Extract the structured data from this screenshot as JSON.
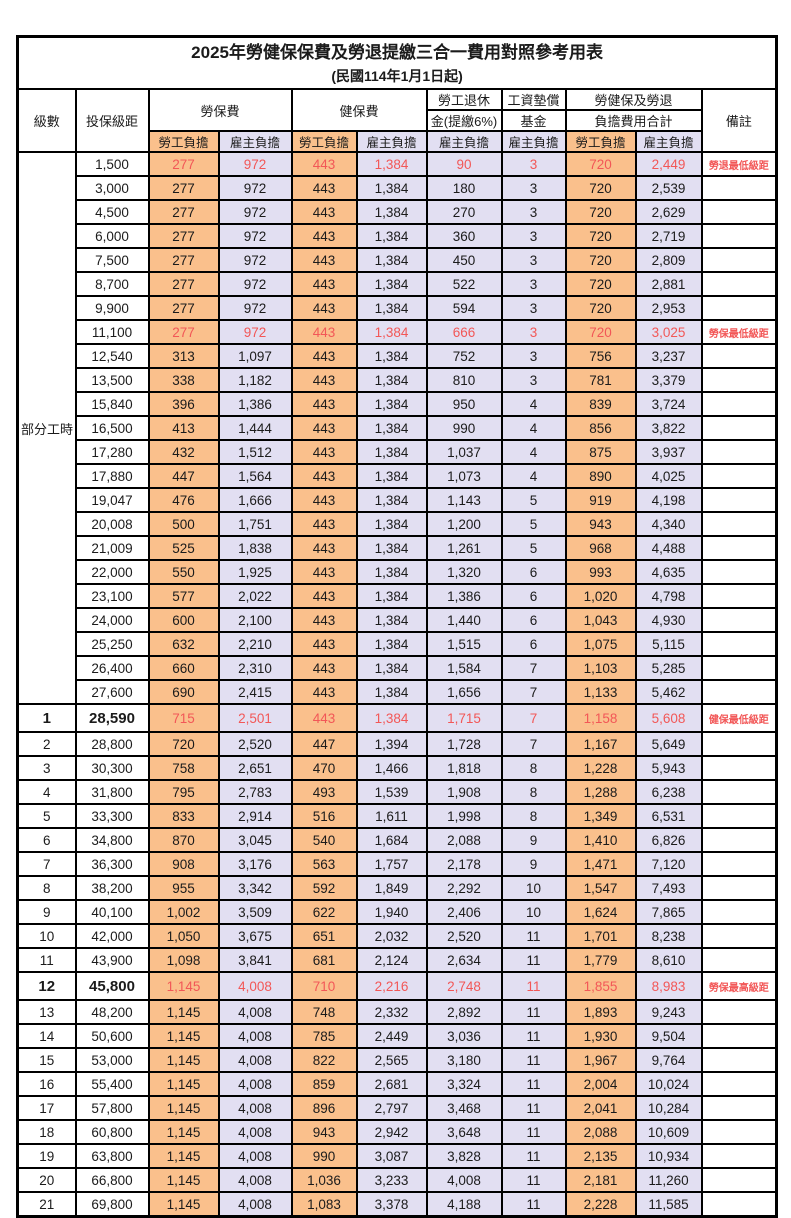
{
  "title": "2025年勞健保保費及勞退提繳三合一費用對照參考用表",
  "subtitle": "(民國114年1月1日起)",
  "header": {
    "level": "級數",
    "bracket": "投保級距",
    "labor_group": "勞保費",
    "health_group": "健保費",
    "pension_line1": "勞工退休",
    "pension_line2": "金(提繳6%)",
    "wage_fund_line1": "工資墊償",
    "wage_fund_line2": "基金",
    "total_line1": "勞健保及勞退",
    "total_line2": "負擔費用合計",
    "remark": "備註",
    "employee_share": "勞工負擔",
    "employer_share": "雇主負擔"
  },
  "part_time_label": "部分工時",
  "colors": {
    "employee_fill": "#fac08c",
    "employer_fill": "#e2dff2",
    "highlight_red": "#f25757",
    "border": "#000000",
    "background": "#ffffff"
  },
  "rows": [
    {
      "level": "",
      "bracket": "1,500",
      "values": [
        "277",
        "972",
        "443",
        "1,384",
        "90",
        "3",
        "720",
        "2,449"
      ],
      "remark": "勞退最低級距",
      "red": true,
      "bold": false
    },
    {
      "level": "",
      "bracket": "3,000",
      "values": [
        "277",
        "972",
        "443",
        "1,384",
        "180",
        "3",
        "720",
        "2,539"
      ],
      "remark": "",
      "red": false,
      "bold": false
    },
    {
      "level": "",
      "bracket": "4,500",
      "values": [
        "277",
        "972",
        "443",
        "1,384",
        "270",
        "3",
        "720",
        "2,629"
      ],
      "remark": "",
      "red": false,
      "bold": false
    },
    {
      "level": "",
      "bracket": "6,000",
      "values": [
        "277",
        "972",
        "443",
        "1,384",
        "360",
        "3",
        "720",
        "2,719"
      ],
      "remark": "",
      "red": false,
      "bold": false
    },
    {
      "level": "",
      "bracket": "7,500",
      "values": [
        "277",
        "972",
        "443",
        "1,384",
        "450",
        "3",
        "720",
        "2,809"
      ],
      "remark": "",
      "red": false,
      "bold": false
    },
    {
      "level": "",
      "bracket": "8,700",
      "values": [
        "277",
        "972",
        "443",
        "1,384",
        "522",
        "3",
        "720",
        "2,881"
      ],
      "remark": "",
      "red": false,
      "bold": false
    },
    {
      "level": "",
      "bracket": "9,900",
      "values": [
        "277",
        "972",
        "443",
        "1,384",
        "594",
        "3",
        "720",
        "2,953"
      ],
      "remark": "",
      "red": false,
      "bold": false
    },
    {
      "level": "",
      "bracket": "11,100",
      "values": [
        "277",
        "972",
        "443",
        "1,384",
        "666",
        "3",
        "720",
        "3,025"
      ],
      "remark": "勞保最低級距",
      "red": true,
      "bold": false
    },
    {
      "level": "",
      "bracket": "12,540",
      "values": [
        "313",
        "1,097",
        "443",
        "1,384",
        "752",
        "3",
        "756",
        "3,237"
      ],
      "remark": "",
      "red": false,
      "bold": false
    },
    {
      "level": "",
      "bracket": "13,500",
      "values": [
        "338",
        "1,182",
        "443",
        "1,384",
        "810",
        "3",
        "781",
        "3,379"
      ],
      "remark": "",
      "red": false,
      "bold": false
    },
    {
      "level": "",
      "bracket": "15,840",
      "values": [
        "396",
        "1,386",
        "443",
        "1,384",
        "950",
        "4",
        "839",
        "3,724"
      ],
      "remark": "",
      "red": false,
      "bold": false
    },
    {
      "level": "",
      "bracket": "16,500",
      "values": [
        "413",
        "1,444",
        "443",
        "1,384",
        "990",
        "4",
        "856",
        "3,822"
      ],
      "remark": "",
      "red": false,
      "bold": false
    },
    {
      "level": "",
      "bracket": "17,280",
      "values": [
        "432",
        "1,512",
        "443",
        "1,384",
        "1,037",
        "4",
        "875",
        "3,937"
      ],
      "remark": "",
      "red": false,
      "bold": false
    },
    {
      "level": "",
      "bracket": "17,880",
      "values": [
        "447",
        "1,564",
        "443",
        "1,384",
        "1,073",
        "4",
        "890",
        "4,025"
      ],
      "remark": "",
      "red": false,
      "bold": false
    },
    {
      "level": "",
      "bracket": "19,047",
      "values": [
        "476",
        "1,666",
        "443",
        "1,384",
        "1,143",
        "5",
        "919",
        "4,198"
      ],
      "remark": "",
      "red": false,
      "bold": false
    },
    {
      "level": "",
      "bracket": "20,008",
      "values": [
        "500",
        "1,751",
        "443",
        "1,384",
        "1,200",
        "5",
        "943",
        "4,340"
      ],
      "remark": "",
      "red": false,
      "bold": false
    },
    {
      "level": "",
      "bracket": "21,009",
      "values": [
        "525",
        "1,838",
        "443",
        "1,384",
        "1,261",
        "5",
        "968",
        "4,488"
      ],
      "remark": "",
      "red": false,
      "bold": false
    },
    {
      "level": "",
      "bracket": "22,000",
      "values": [
        "550",
        "1,925",
        "443",
        "1,384",
        "1,320",
        "6",
        "993",
        "4,635"
      ],
      "remark": "",
      "red": false,
      "bold": false
    },
    {
      "level": "",
      "bracket": "23,100",
      "values": [
        "577",
        "2,022",
        "443",
        "1,384",
        "1,386",
        "6",
        "1,020",
        "4,798"
      ],
      "remark": "",
      "red": false,
      "bold": false
    },
    {
      "level": "",
      "bracket": "24,000",
      "values": [
        "600",
        "2,100",
        "443",
        "1,384",
        "1,440",
        "6",
        "1,043",
        "4,930"
      ],
      "remark": "",
      "red": false,
      "bold": false
    },
    {
      "level": "",
      "bracket": "25,250",
      "values": [
        "632",
        "2,210",
        "443",
        "1,384",
        "1,515",
        "6",
        "1,075",
        "5,115"
      ],
      "remark": "",
      "red": false,
      "bold": false
    },
    {
      "level": "",
      "bracket": "26,400",
      "values": [
        "660",
        "2,310",
        "443",
        "1,384",
        "1,584",
        "7",
        "1,103",
        "5,285"
      ],
      "remark": "",
      "red": false,
      "bold": false
    },
    {
      "level": "",
      "bracket": "27,600",
      "values": [
        "690",
        "2,415",
        "443",
        "1,384",
        "1,656",
        "7",
        "1,133",
        "5,462"
      ],
      "remark": "",
      "red": false,
      "bold": false
    },
    {
      "level": "1",
      "bracket": "28,590",
      "values": [
        "715",
        "2,501",
        "443",
        "1,384",
        "1,715",
        "7",
        "1,158",
        "5,608"
      ],
      "remark": "健保最低級距",
      "red": true,
      "bold": true
    },
    {
      "level": "2",
      "bracket": "28,800",
      "values": [
        "720",
        "2,520",
        "447",
        "1,394",
        "1,728",
        "7",
        "1,167",
        "5,649"
      ],
      "remark": "",
      "red": false,
      "bold": false
    },
    {
      "level": "3",
      "bracket": "30,300",
      "values": [
        "758",
        "2,651",
        "470",
        "1,466",
        "1,818",
        "8",
        "1,228",
        "5,943"
      ],
      "remark": "",
      "red": false,
      "bold": false
    },
    {
      "level": "4",
      "bracket": "31,800",
      "values": [
        "795",
        "2,783",
        "493",
        "1,539",
        "1,908",
        "8",
        "1,288",
        "6,238"
      ],
      "remark": "",
      "red": false,
      "bold": false
    },
    {
      "level": "5",
      "bracket": "33,300",
      "values": [
        "833",
        "2,914",
        "516",
        "1,611",
        "1,998",
        "8",
        "1,349",
        "6,531"
      ],
      "remark": "",
      "red": false,
      "bold": false
    },
    {
      "level": "6",
      "bracket": "34,800",
      "values": [
        "870",
        "3,045",
        "540",
        "1,684",
        "2,088",
        "9",
        "1,410",
        "6,826"
      ],
      "remark": "",
      "red": false,
      "bold": false
    },
    {
      "level": "7",
      "bracket": "36,300",
      "values": [
        "908",
        "3,176",
        "563",
        "1,757",
        "2,178",
        "9",
        "1,471",
        "7,120"
      ],
      "remark": "",
      "red": false,
      "bold": false
    },
    {
      "level": "8",
      "bracket": "38,200",
      "values": [
        "955",
        "3,342",
        "592",
        "1,849",
        "2,292",
        "10",
        "1,547",
        "7,493"
      ],
      "remark": "",
      "red": false,
      "bold": false
    },
    {
      "level": "9",
      "bracket": "40,100",
      "values": [
        "1,002",
        "3,509",
        "622",
        "1,940",
        "2,406",
        "10",
        "1,624",
        "7,865"
      ],
      "remark": "",
      "red": false,
      "bold": false
    },
    {
      "level": "10",
      "bracket": "42,000",
      "values": [
        "1,050",
        "3,675",
        "651",
        "2,032",
        "2,520",
        "11",
        "1,701",
        "8,238"
      ],
      "remark": "",
      "red": false,
      "bold": false
    },
    {
      "level": "11",
      "bracket": "43,900",
      "values": [
        "1,098",
        "3,841",
        "681",
        "2,124",
        "2,634",
        "11",
        "1,779",
        "8,610"
      ],
      "remark": "",
      "red": false,
      "bold": false
    },
    {
      "level": "12",
      "bracket": "45,800",
      "values": [
        "1,145",
        "4,008",
        "710",
        "2,216",
        "2,748",
        "11",
        "1,855",
        "8,983"
      ],
      "remark": "勞保最高級距",
      "red": true,
      "bold": true
    },
    {
      "level": "13",
      "bracket": "48,200",
      "values": [
        "1,145",
        "4,008",
        "748",
        "2,332",
        "2,892",
        "11",
        "1,893",
        "9,243"
      ],
      "remark": "",
      "red": false,
      "bold": false
    },
    {
      "level": "14",
      "bracket": "50,600",
      "values": [
        "1,145",
        "4,008",
        "785",
        "2,449",
        "3,036",
        "11",
        "1,930",
        "9,504"
      ],
      "remark": "",
      "red": false,
      "bold": false
    },
    {
      "level": "15",
      "bracket": "53,000",
      "values": [
        "1,145",
        "4,008",
        "822",
        "2,565",
        "3,180",
        "11",
        "1,967",
        "9,764"
      ],
      "remark": "",
      "red": false,
      "bold": false
    },
    {
      "level": "16",
      "bracket": "55,400",
      "values": [
        "1,145",
        "4,008",
        "859",
        "2,681",
        "3,324",
        "11",
        "2,004",
        "10,024"
      ],
      "remark": "",
      "red": false,
      "bold": false
    },
    {
      "level": "17",
      "bracket": "57,800",
      "values": [
        "1,145",
        "4,008",
        "896",
        "2,797",
        "3,468",
        "11",
        "2,041",
        "10,284"
      ],
      "remark": "",
      "red": false,
      "bold": false
    },
    {
      "level": "18",
      "bracket": "60,800",
      "values": [
        "1,145",
        "4,008",
        "943",
        "2,942",
        "3,648",
        "11",
        "2,088",
        "10,609"
      ],
      "remark": "",
      "red": false,
      "bold": false
    },
    {
      "level": "19",
      "bracket": "63,800",
      "values": [
        "1,145",
        "4,008",
        "990",
        "3,087",
        "3,828",
        "11",
        "2,135",
        "10,934"
      ],
      "remark": "",
      "red": false,
      "bold": false
    },
    {
      "level": "20",
      "bracket": "66,800",
      "values": [
        "1,145",
        "4,008",
        "1,036",
        "3,233",
        "4,008",
        "11",
        "2,181",
        "11,260"
      ],
      "remark": "",
      "red": false,
      "bold": false
    },
    {
      "level": "21",
      "bracket": "69,800",
      "values": [
        "1,145",
        "4,008",
        "1,083",
        "3,378",
        "4,188",
        "11",
        "2,228",
        "11,585"
      ],
      "remark": "",
      "red": false,
      "bold": false
    }
  ]
}
